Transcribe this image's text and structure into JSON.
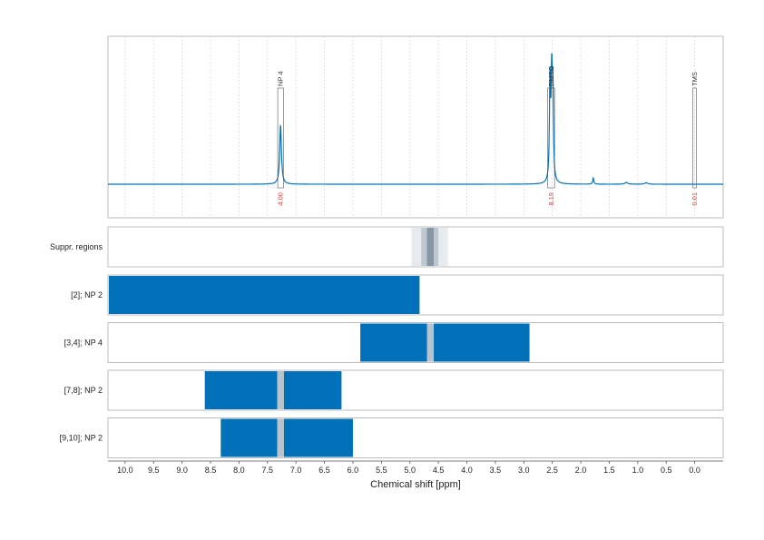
{
  "chart_data": {
    "type": "nmr-spectrum",
    "xlabel": "Chemical shift [ppm]",
    "xlim": [
      10.3,
      -0.5
    ],
    "x_ticks": [
      10.0,
      9.5,
      9.0,
      8.5,
      8.0,
      7.5,
      7.0,
      6.5,
      6.0,
      5.5,
      5.0,
      4.5,
      4.0,
      3.5,
      3.0,
      2.5,
      2.0,
      1.5,
      1.0,
      0.5,
      0.0
    ],
    "x_tick_labels": [
      "10.0",
      "9.5",
      "9.0",
      "8.5",
      "8.0",
      "7.5",
      "7.0",
      "6.5",
      "6.0",
      "5.5",
      "5.0",
      "4.5",
      "4.0",
      "3.5",
      "3.0",
      "2.5",
      "2.0",
      "1.5",
      "1.0",
      "0.5",
      "0.0"
    ],
    "grid": "vertical dotted",
    "color": "#0070b8",
    "spectrum": {
      "baseline": 0,
      "peaks": [
        {
          "ppm": 7.27,
          "height": 0.48,
          "width": 0.018
        },
        {
          "ppm": 2.54,
          "height": 0.82,
          "width": 0.012
        },
        {
          "ppm": 2.51,
          "height": 0.78,
          "width": 0.012
        },
        {
          "ppm": 2.49,
          "height": 0.7,
          "width": 0.012
        },
        {
          "ppm": 1.78,
          "height": 0.05,
          "width": 0.012
        },
        {
          "ppm": 1.2,
          "height": 0.015,
          "width": 0.03
        },
        {
          "ppm": 0.85,
          "height": 0.012,
          "width": 0.03
        }
      ]
    },
    "annotations": [
      {
        "label": "NP 4",
        "ppm_start": 7.32,
        "ppm_end": 7.22,
        "integral": "4.00"
      },
      {
        "label": "DMSO",
        "ppm_start": 2.58,
        "ppm_end": 2.46,
        "integral": "8.19"
      },
      {
        "label": "TMS",
        "ppm_start": 0.03,
        "ppm_end": -0.03,
        "integral": "0.01"
      }
    ],
    "suppression": {
      "label": "Suppr. regions",
      "bands": [
        {
          "start": 4.97,
          "end": 4.33,
          "level": 0.2
        },
        {
          "start": 4.8,
          "end": 4.5,
          "level": 0.4
        },
        {
          "start": 4.7,
          "end": 4.58,
          "level": 0.7
        }
      ]
    },
    "rows": [
      {
        "label": "[2]; NP 2",
        "segments": [
          {
            "start": 10.3,
            "end": 4.83
          }
        ],
        "gaps": []
      },
      {
        "label": "[3,4]; NP 4",
        "segments": [
          {
            "start": 5.87,
            "end": 2.9
          }
        ],
        "gaps": [
          {
            "start": 4.7,
            "end": 4.58
          }
        ]
      },
      {
        "label": "[7,8]; NP 2",
        "segments": [
          {
            "start": 8.6,
            "end": 6.2
          }
        ],
        "gaps": [
          {
            "start": 7.33,
            "end": 7.21
          }
        ]
      },
      {
        "label": "[9,10]; NP 2",
        "segments": [
          {
            "start": 8.32,
            "end": 6.0
          }
        ],
        "gaps": [
          {
            "start": 7.33,
            "end": 7.21
          }
        ]
      }
    ]
  }
}
